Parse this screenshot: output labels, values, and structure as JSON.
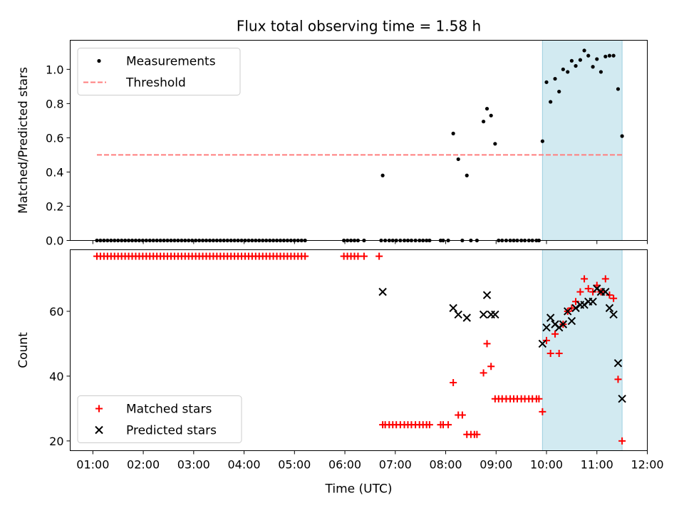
{
  "chart_data": [
    {
      "type": "scatter",
      "title": "Flux total observing time = 1.58 h",
      "ylabel": "Matched/Predicted stars",
      "xlabel": "",
      "x_unit": "hours UTC",
      "xlim": [
        0.55,
        12.0
      ],
      "ylim": [
        0.0,
        1.17
      ],
      "yticks": [
        "0.0",
        "0.2",
        "0.4",
        "0.6",
        "0.8",
        "1.0"
      ],
      "shaded_interval": [
        9.92,
        11.5
      ],
      "legend": {
        "placement": "top-left",
        "entries": [
          "Measurements",
          "Threshold"
        ]
      },
      "threshold": {
        "name": "Threshold",
        "y": 0.5,
        "x_range": [
          1.08,
          11.5
        ],
        "color": "#ff7f7f"
      },
      "series": [
        {
          "name": "Measurements",
          "color": "#000000",
          "x": [
            1.08,
            1.15,
            1.22,
            1.29,
            1.36,
            1.43,
            1.5,
            1.57,
            1.64,
            1.71,
            1.78,
            1.85,
            1.92,
            1.99,
            2.06,
            2.13,
            2.2,
            2.27,
            2.34,
            2.41,
            2.48,
            2.55,
            2.62,
            2.69,
            2.76,
            2.83,
            2.9,
            2.97,
            3.04,
            3.11,
            3.18,
            3.25,
            3.32,
            3.39,
            3.46,
            3.53,
            3.6,
            3.67,
            3.74,
            3.81,
            3.88,
            3.95,
            4.02,
            4.09,
            4.16,
            4.23,
            4.3,
            4.37,
            4.44,
            4.51,
            4.58,
            4.65,
            4.72,
            4.79,
            4.86,
            4.93,
            5.0,
            5.07,
            5.14,
            5.21,
            5.98,
            6.05,
            6.12,
            6.19,
            6.26,
            6.38,
            6.72,
            6.75,
            6.8,
            6.88,
            6.95,
            7.02,
            7.1,
            7.18,
            7.25,
            7.32,
            7.4,
            7.48,
            7.55,
            7.62,
            7.68,
            7.9,
            7.95,
            8.05,
            8.15,
            8.25,
            8.33,
            8.42,
            8.5,
            8.62,
            8.75,
            8.82,
            8.9,
            8.98,
            9.05,
            9.12,
            9.2,
            9.28,
            9.35,
            9.42,
            9.5,
            9.57,
            9.65,
            9.72,
            9.8,
            9.85,
            9.92,
            10.0,
            10.08,
            10.17,
            10.25,
            10.33,
            10.42,
            10.5,
            10.58,
            10.67,
            10.75,
            10.83,
            10.92,
            11.0,
            11.08,
            11.17,
            11.25,
            11.33,
            11.42,
            11.5
          ],
          "y": [
            0,
            0,
            0,
            0,
            0,
            0,
            0,
            0,
            0,
            0,
            0,
            0,
            0,
            0,
            0,
            0,
            0,
            0,
            0,
            0,
            0,
            0,
            0,
            0,
            0,
            0,
            0,
            0,
            0,
            0,
            0,
            0,
            0,
            0,
            0,
            0,
            0,
            0,
            0,
            0,
            0,
            0,
            0,
            0,
            0,
            0,
            0,
            0,
            0,
            0,
            0,
            0,
            0,
            0,
            0,
            0,
            0,
            0,
            0,
            0,
            0,
            0,
            0,
            0,
            0,
            0,
            0,
            0.38,
            0,
            0,
            0,
            0,
            0,
            0,
            0,
            0,
            0,
            0,
            0,
            0,
            0,
            0,
            0,
            0,
            0.625,
            0.475,
            0,
            0.38,
            0,
            0,
            0.695,
            0.77,
            0.73,
            0.565,
            0,
            0,
            0,
            0,
            0,
            0,
            0,
            0,
            0,
            0,
            0,
            0,
            0.58,
            0.925,
            0.81,
            0.945,
            0.87,
            1.0,
            0.985,
            1.05,
            1.02,
            1.055,
            1.11,
            1.08,
            1.015,
            1.06,
            0.985,
            1.075,
            1.08,
            1.08,
            0.885,
            0.61
          ]
        }
      ]
    },
    {
      "type": "scatter",
      "title": "",
      "ylabel": "Count",
      "xlabel": "Time (UTC)",
      "x_unit": "hours UTC",
      "xlim": [
        0.55,
        12.0
      ],
      "ylim": [
        17,
        79
      ],
      "yticks": [
        "20",
        "40",
        "60"
      ],
      "xticks": [
        "01:00",
        "02:00",
        "03:00",
        "04:00",
        "05:00",
        "06:00",
        "07:00",
        "08:00",
        "09:00",
        "10:00",
        "11:00",
        "12:00"
      ],
      "shaded_interval": [
        9.92,
        11.5
      ],
      "legend": {
        "placement": "bottom-left",
        "entries": [
          "Matched stars",
          "Predicted stars"
        ]
      },
      "series": [
        {
          "name": "Matched stars",
          "color": "#ff0000",
          "marker": "plus",
          "x": [
            1.08,
            1.15,
            1.22,
            1.29,
            1.36,
            1.43,
            1.5,
            1.57,
            1.64,
            1.71,
            1.78,
            1.85,
            1.92,
            1.99,
            2.06,
            2.13,
            2.2,
            2.27,
            2.34,
            2.41,
            2.48,
            2.55,
            2.62,
            2.69,
            2.76,
            2.83,
            2.9,
            2.97,
            3.04,
            3.11,
            3.18,
            3.25,
            3.32,
            3.39,
            3.46,
            3.53,
            3.6,
            3.67,
            3.74,
            3.81,
            3.88,
            3.95,
            4.02,
            4.09,
            4.16,
            4.23,
            4.3,
            4.37,
            4.44,
            4.51,
            4.58,
            4.65,
            4.72,
            4.79,
            4.86,
            4.93,
            5.0,
            5.07,
            5.14,
            5.21,
            5.98,
            6.05,
            6.12,
            6.19,
            6.26,
            6.38,
            6.68,
            6.75,
            6.8,
            6.88,
            6.95,
            7.02,
            7.1,
            7.18,
            7.25,
            7.32,
            7.4,
            7.48,
            7.55,
            7.62,
            7.68,
            7.9,
            7.95,
            8.05,
            8.15,
            8.25,
            8.33,
            8.42,
            8.5,
            8.57,
            8.62,
            8.75,
            8.82,
            8.9,
            8.98,
            9.05,
            9.12,
            9.2,
            9.28,
            9.35,
            9.42,
            9.5,
            9.57,
            9.65,
            9.72,
            9.8,
            9.85,
            9.92,
            10.0,
            10.08,
            10.17,
            10.25,
            10.33,
            10.42,
            10.5,
            10.58,
            10.67,
            10.75,
            10.83,
            10.92,
            11.0,
            11.08,
            11.17,
            11.25,
            11.33,
            11.42,
            11.5
          ],
          "y": [
            77,
            77,
            77,
            77,
            77,
            77,
            77,
            77,
            77,
            77,
            77,
            77,
            77,
            77,
            77,
            77,
            77,
            77,
            77,
            77,
            77,
            77,
            77,
            77,
            77,
            77,
            77,
            77,
            77,
            77,
            77,
            77,
            77,
            77,
            77,
            77,
            77,
            77,
            77,
            77,
            77,
            77,
            77,
            77,
            77,
            77,
            77,
            77,
            77,
            77,
            77,
            77,
            77,
            77,
            77,
            77,
            77,
            77,
            77,
            77,
            77,
            77,
            77,
            77,
            77,
            77,
            77,
            25,
            25,
            25,
            25,
            25,
            25,
            25,
            25,
            25,
            25,
            25,
            25,
            25,
            25,
            25,
            25,
            25,
            38,
            28,
            28,
            22,
            22,
            22,
            22,
            41,
            50,
            43,
            33,
            33,
            33,
            33,
            33,
            33,
            33,
            33,
            33,
            33,
            33,
            33,
            33,
            29,
            51,
            47,
            53,
            47,
            56,
            60,
            61,
            63,
            66,
            70,
            67,
            66,
            68,
            66,
            70,
            65,
            64,
            39,
            20
          ]
        },
        {
          "name": "Predicted stars",
          "color": "#000000",
          "marker": "x",
          "x": [
            6.75,
            8.15,
            8.25,
            8.42,
            8.75,
            8.82,
            8.9,
            8.98,
            9.92,
            10.0,
            10.08,
            10.17,
            10.25,
            10.33,
            10.42,
            10.5,
            10.58,
            10.67,
            10.75,
            10.83,
            10.92,
            11.0,
            11.08,
            11.17,
            11.25,
            11.33,
            11.42,
            11.5
          ],
          "y": [
            66,
            61,
            59,
            58,
            59,
            65,
            59,
            59,
            50,
            55,
            58,
            56,
            55,
            56,
            60,
            57,
            61,
            62,
            62,
            63,
            63,
            67,
            66,
            66,
            61,
            59,
            44,
            33
          ]
        }
      ]
    }
  ]
}
